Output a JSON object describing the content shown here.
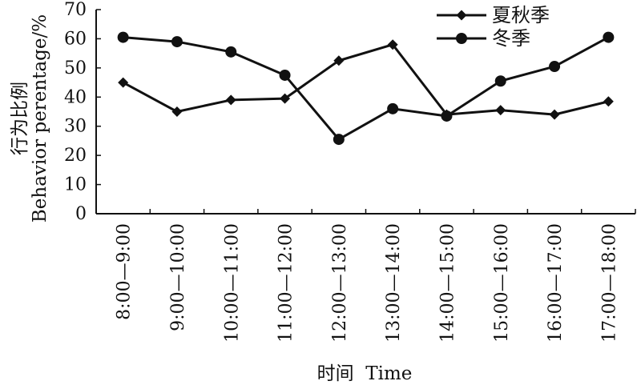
{
  "chart_data": {
    "type": "line",
    "title": "",
    "xlabel": "时间  Time",
    "ylabel_cn": "行为比例",
    "ylabel_en": "Behavior perentage/%",
    "ylim": [
      0,
      70
    ],
    "yticks": [
      0,
      10,
      20,
      30,
      40,
      50,
      60,
      70
    ],
    "grid": false,
    "legend_position": "top-right",
    "categories": [
      "8:00—9:00",
      "9:00—10:00",
      "10:00—11:00",
      "11:00—12:00",
      "12:00—13:00",
      "13:00—14:00",
      "14:00—15:00",
      "15:00—16:00",
      "16:00—17:00",
      "17:00—18:00"
    ],
    "series": [
      {
        "name": "夏秋季",
        "marker": "diamond",
        "color": "#111111",
        "values": [
          45,
          35,
          39,
          39.5,
          52.5,
          58,
          34,
          35.5,
          34,
          38.5
        ]
      },
      {
        "name": "冬季",
        "marker": "circle",
        "color": "#111111",
        "values": [
          60.5,
          59,
          55.5,
          47.5,
          25.5,
          36,
          33.5,
          45.5,
          50.5,
          60.5
        ]
      }
    ]
  }
}
